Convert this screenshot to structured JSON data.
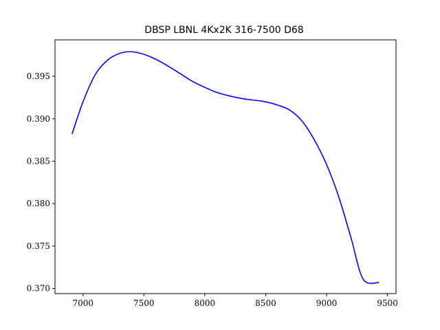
{
  "chart_data": {
    "type": "line",
    "title": "DBSP LBNL 4Kx2K  316-7500  D68",
    "xlabel": "",
    "ylabel": "",
    "xlim": [
      6770,
      9570
    ],
    "ylim": [
      0.3694,
      0.3993
    ],
    "xticks": [
      7000,
      7500,
      8000,
      8500,
      9000,
      9500
    ],
    "yticks": [
      0.37,
      0.375,
      0.38,
      0.385,
      0.39,
      0.395
    ],
    "xtick_labels": [
      "7000",
      "7500",
      "8000",
      "8500",
      "9000",
      "9500"
    ],
    "ytick_labels": [
      "0.370",
      "0.375",
      "0.380",
      "0.385",
      "0.390",
      "0.395"
    ],
    "grid": false,
    "series": [
      {
        "color": "#0000ff",
        "x": [
          6910,
          7000,
          7100,
          7200,
          7300,
          7400,
          7500,
          7600,
          7700,
          7800,
          7900,
          8000,
          8100,
          8200,
          8300,
          8400,
          8500,
          8600,
          8700,
          8800,
          8900,
          9000,
          9100,
          9200,
          9300,
          9430
        ],
        "y": [
          0.3882,
          0.392,
          0.3952,
          0.3969,
          0.3977,
          0.3979,
          0.3976,
          0.397,
          0.3962,
          0.3953,
          0.3944,
          0.3937,
          0.3931,
          0.3927,
          0.3924,
          0.3922,
          0.392,
          0.3916,
          0.391,
          0.3897,
          0.3875,
          0.3846,
          0.3808,
          0.376,
          0.3711,
          0.3707
        ]
      }
    ]
  }
}
